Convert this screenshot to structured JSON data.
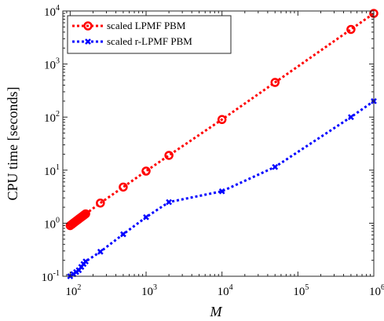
{
  "chart_data": {
    "type": "line",
    "xscale": "log",
    "yscale": "log",
    "xlabel": "M",
    "ylabel": "CPU time [seconds]",
    "xlim": [
      80,
      1000000
    ],
    "ylim": [
      0.1,
      10000
    ],
    "xticks": [
      {
        "value": 100,
        "base": "10",
        "exp": "2"
      },
      {
        "value": 1000,
        "base": "10",
        "exp": "3"
      },
      {
        "value": 10000,
        "base": "10",
        "exp": "4"
      },
      {
        "value": 100000,
        "base": "10",
        "exp": "5"
      },
      {
        "value": 1000000,
        "base": "10",
        "exp": "6"
      }
    ],
    "yticks": [
      {
        "value": 0.1,
        "base": "10",
        "exp": "-1"
      },
      {
        "value": 1,
        "base": "10",
        "exp": "0"
      },
      {
        "value": 10,
        "base": "10",
        "exp": "1"
      },
      {
        "value": 100,
        "base": "10",
        "exp": "2"
      },
      {
        "value": 1000,
        "base": "10",
        "exp": "3"
      },
      {
        "value": 10000,
        "base": "10",
        "exp": "4"
      }
    ],
    "legend_position": "top-left",
    "grid": false,
    "series": [
      {
        "name": "scaled LPMF PBM",
        "color": "#ff0000",
        "marker": "circle",
        "x": [
          100,
          105,
          110,
          115,
          120,
          125,
          130,
          135,
          140,
          145,
          150,
          155,
          160,
          250,
          500,
          1000,
          2000,
          10000,
          50000,
          500000,
          1000000
        ],
        "y": [
          0.9,
          0.95,
          1.0,
          1.05,
          1.1,
          1.15,
          1.2,
          1.25,
          1.3,
          1.35,
          1.4,
          1.45,
          1.5,
          2.4,
          4.8,
          9.6,
          19,
          90,
          450,
          4500,
          9000
        ]
      },
      {
        "name": "scaled r-LPMF PBM",
        "color": "#0000ff",
        "marker": "x",
        "x": [
          100,
          110,
          120,
          130,
          140,
          150,
          160,
          250,
          500,
          1000,
          2000,
          10000,
          50000,
          500000,
          1000000
        ],
        "y": [
          0.1,
          0.11,
          0.12,
          0.13,
          0.15,
          0.17,
          0.19,
          0.29,
          0.62,
          1.3,
          2.5,
          4,
          11.5,
          100,
          200
        ]
      }
    ]
  }
}
